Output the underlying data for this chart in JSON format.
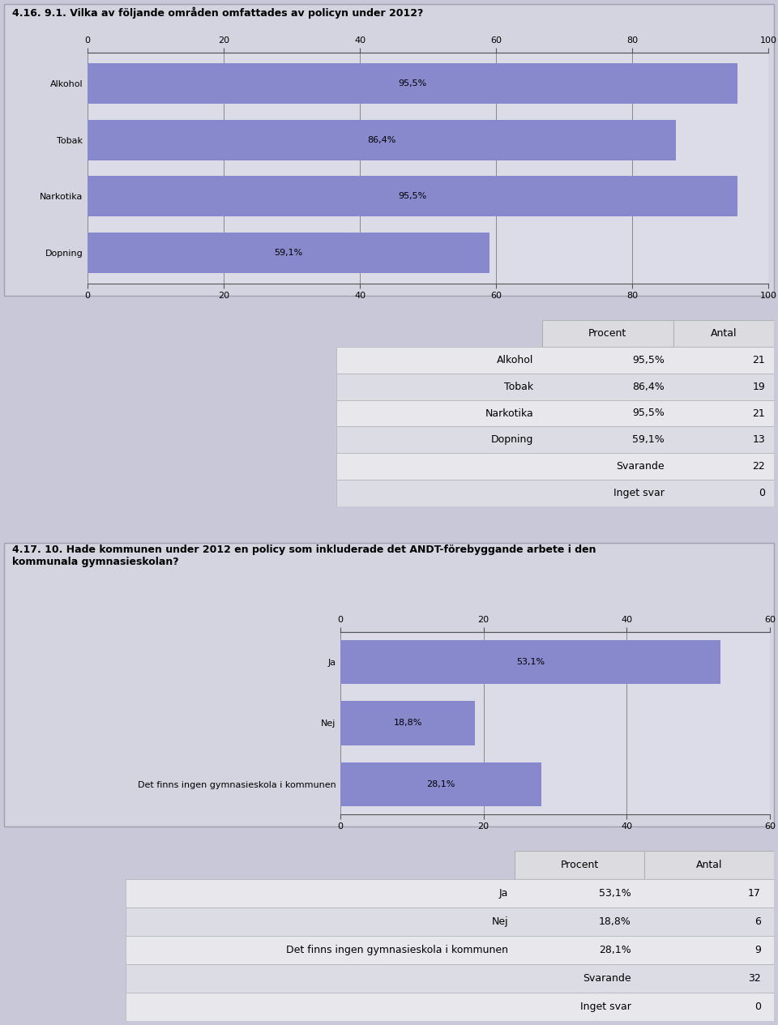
{
  "section1": {
    "title": "4.16. 9.1. Vilka av följande områden omfattades av policyn under 2012?",
    "categories": [
      "Alkohol",
      "Tobak",
      "Narkotika",
      "Dopning"
    ],
    "values": [
      95.5,
      86.4,
      95.5,
      59.1
    ],
    "labels": [
      "95,5%",
      "86,4%",
      "95,5%",
      "59,1%"
    ],
    "xlim": [
      0,
      100
    ],
    "xticks": [
      0,
      20,
      40,
      60,
      80,
      100
    ],
    "bar_color": "#8888cc",
    "chart_bg": "#dcdce8",
    "panel_bg": "#d4d4e0",
    "table_rows": [
      "Alkohol",
      "Tobak",
      "Narkotika",
      "Dopning"
    ],
    "table_procent": [
      "95,5%",
      "86,4%",
      "95,5%",
      "59,1%"
    ],
    "table_antal": [
      "21",
      "19",
      "21",
      "13"
    ],
    "svarande": "22",
    "inget_svar": "0"
  },
  "section2": {
    "title": "4.17. 10. Hade kommunen under 2012 en policy som inkluderade det ANDT-förebyggande arbete i den\nkommunala gymnasieskolan?",
    "categories": [
      "Ja",
      "Nej",
      "Det finns ingen gymnasieskola i kommunen"
    ],
    "values": [
      53.1,
      18.8,
      28.1
    ],
    "labels": [
      "53,1%",
      "18,8%",
      "28,1%"
    ],
    "xlim": [
      0,
      60
    ],
    "xticks": [
      0,
      20,
      40,
      60
    ],
    "bar_color": "#8888cc",
    "chart_bg": "#dcdce8",
    "panel_bg": "#d4d4e0",
    "table_rows": [
      "Ja",
      "Nej",
      "Det finns ingen gymnasieskola i kommunen"
    ],
    "table_procent": [
      "53,1%",
      "18,8%",
      "28,1%"
    ],
    "table_antal": [
      "17",
      "6",
      "9"
    ],
    "svarande": "32",
    "inget_svar": "0"
  },
  "page_bg": "#c8c8d8",
  "header_bg": "#dcdce0",
  "row_bg_light": "#e8e8ec",
  "row_bg_mid": "#dcdce4",
  "table_border": "#b0b0b8",
  "font_size_title": 9,
  "font_size_bar_label": 8,
  "font_size_table": 9,
  "font_size_tick": 8
}
